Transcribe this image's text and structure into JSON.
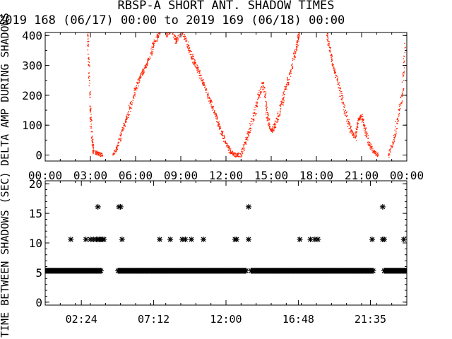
{
  "title": "RBSP-A SHORT ANT. SHADOW TIMES",
  "subtitle": "2019 168 (06/17) 00:00 to 2019 169 (06/18) 00:00",
  "colors": {
    "scatter": "#ff2200",
    "axes": "#000000",
    "background": "#ffffff"
  },
  "chart_data": [
    {
      "type": "scatter",
      "ylabel": "DELTA AMP DURING SHADOWS",
      "xlabel": "",
      "x_tick_labels": [
        "00:00",
        "03:00",
        "06:00",
        "09:00",
        "12:00",
        "15:00",
        "18:00",
        "21:00",
        "00:00"
      ],
      "y_tick_labels": [
        "0",
        "100",
        "200",
        "300",
        "400"
      ],
      "xlim": [
        "00:00",
        "24:00"
      ],
      "ylim": [
        -20,
        410
      ],
      "grid": false,
      "legend": "none",
      "series": [
        {
          "points": [
            [
              "02:48",
              420
            ],
            [
              "02:54",
              300
            ],
            [
              "03:00",
              150
            ],
            [
              "03:06",
              60
            ],
            [
              "03:12",
              15
            ],
            [
              "03:30",
              5
            ],
            [
              "03:48",
              0
            ],
            [
              "04:30",
              0
            ],
            [
              "04:48",
              30
            ],
            [
              "05:06",
              80
            ],
            [
              "05:24",
              120
            ],
            [
              "05:42",
              170
            ],
            [
              "06:00",
              220
            ],
            [
              "06:18",
              260
            ],
            [
              "06:36",
              290
            ],
            [
              "06:54",
              320
            ],
            [
              "07:12",
              370
            ],
            [
              "07:30",
              400
            ],
            [
              "07:48",
              430
            ],
            [
              "08:06",
              400
            ],
            [
              "08:24",
              420
            ],
            [
              "08:42",
              380
            ],
            [
              "09:00",
              420
            ],
            [
              "09:18",
              390
            ],
            [
              "09:36",
              350
            ],
            [
              "09:54",
              310
            ],
            [
              "10:12",
              280
            ],
            [
              "10:30",
              240
            ],
            [
              "10:48",
              200
            ],
            [
              "11:06",
              160
            ],
            [
              "11:24",
              120
            ],
            [
              "11:42",
              80
            ],
            [
              "12:00",
              40
            ],
            [
              "12:18",
              10
            ],
            [
              "12:36",
              0
            ],
            [
              "13:00",
              0
            ],
            [
              "13:18",
              40
            ],
            [
              "13:36",
              90
            ],
            [
              "13:54",
              140
            ],
            [
              "14:12",
              200
            ],
            [
              "14:30",
              240
            ],
            [
              "14:42",
              150
            ],
            [
              "14:54",
              90
            ],
            [
              "15:06",
              80
            ],
            [
              "15:24",
              120
            ],
            [
              "15:42",
              170
            ],
            [
              "16:00",
              230
            ],
            [
              "16:18",
              280
            ],
            [
              "16:36",
              340
            ],
            [
              "16:48",
              390
            ],
            [
              "16:54",
              420
            ],
            [
              "18:42",
              400
            ],
            [
              "18:54",
              350
            ],
            [
              "19:06",
              300
            ],
            [
              "19:24",
              250
            ],
            [
              "19:42",
              190
            ],
            [
              "20:00",
              130
            ],
            [
              "20:18",
              80
            ],
            [
              "20:36",
              60
            ],
            [
              "20:48",
              120
            ],
            [
              "21:00",
              130
            ],
            [
              "21:12",
              90
            ],
            [
              "21:30",
              40
            ],
            [
              "21:48",
              10
            ],
            [
              "22:06",
              0
            ],
            [
              "22:48",
              0
            ],
            [
              "23:06",
              40
            ],
            [
              "23:24",
              120
            ],
            [
              "23:42",
              200
            ],
            [
              "23:54",
              360
            ]
          ]
        }
      ]
    },
    {
      "type": "scatter",
      "ylabel": "TIME BETWEEN SHADOWS (SEC)",
      "xlabel": "",
      "x_tick_labels": [
        "02:24",
        "07:12",
        "12:00",
        "16:48",
        "21:35"
      ],
      "y_tick_labels": [
        "0",
        "5",
        "10",
        "15",
        "20"
      ],
      "xlim": [
        "00:00",
        "24:00"
      ],
      "ylim": [
        -0.5,
        20.5
      ],
      "grid": false,
      "legend": "none",
      "marker": "asterisk",
      "series": [
        {
          "baseline_value": 5.3,
          "baseline_ranges": [
            [
              "00:00",
              "03:45"
            ],
            [
              "04:50",
              "13:20"
            ],
            [
              "13:40",
              "21:48"
            ],
            [
              "22:30",
              "24:00"
            ]
          ],
          "points": [
            [
              "01:42",
              10.6
            ],
            [
              "02:42",
              10.6
            ],
            [
              "03:00",
              10.6
            ],
            [
              "03:12",
              10.6
            ],
            [
              "03:24",
              10.6
            ],
            [
              "03:30",
              10.6
            ],
            [
              "03:36",
              10.6
            ],
            [
              "03:42",
              10.6
            ],
            [
              "03:48",
              10.6
            ],
            [
              "03:54",
              10.6
            ],
            [
              "03:30",
              16.1
            ],
            [
              "04:54",
              16.1
            ],
            [
              "05:00",
              16.1
            ],
            [
              "05:06",
              10.6
            ],
            [
              "07:36",
              10.6
            ],
            [
              "08:18",
              10.6
            ],
            [
              "09:06",
              10.6
            ],
            [
              "09:18",
              10.6
            ],
            [
              "09:42",
              10.6
            ],
            [
              "10:30",
              10.6
            ],
            [
              "12:36",
              10.6
            ],
            [
              "12:42",
              10.6
            ],
            [
              "13:30",
              16.1
            ],
            [
              "13:30",
              10.6
            ],
            [
              "16:54",
              10.6
            ],
            [
              "17:36",
              10.6
            ],
            [
              "17:54",
              10.6
            ],
            [
              "18:06",
              10.6
            ],
            [
              "21:42",
              10.6
            ],
            [
              "22:24",
              16.1
            ],
            [
              "22:24",
              10.6
            ],
            [
              "22:30",
              10.6
            ],
            [
              "23:48",
              10.6
            ]
          ]
        }
      ]
    }
  ]
}
